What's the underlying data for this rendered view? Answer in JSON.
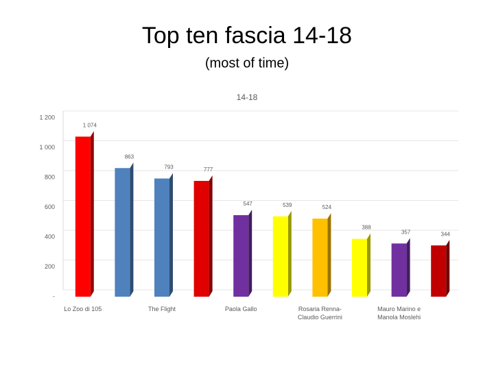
{
  "title": "Top ten fascia 14-18",
  "subtitle": "(most of time)",
  "chart_data": {
    "type": "bar",
    "title": "14-18",
    "categories": [
      "Lo Zoo di 105",
      null,
      "The Flight",
      null,
      "Paola Gallo",
      null,
      "Rosaria Renna-Claudio Guerrini",
      null,
      "Mauro Marino e Manola Moslehi",
      null
    ],
    "values": [
      1074,
      863,
      793,
      777,
      547,
      539,
      524,
      388,
      357,
      344
    ],
    "value_labels": [
      "1 074",
      "863",
      "793",
      "777",
      "547",
      "539",
      "524",
      "388",
      "357",
      "344"
    ],
    "colors": [
      "#ff0000",
      "#4f81bd",
      "#4f81bd",
      "#e00000",
      "#7030a0",
      "#ffff00",
      "#ffc000",
      "#ffff00",
      "#7030a0",
      "#c00000"
    ],
    "ylim": [
      0,
      1200
    ],
    "yticks": [
      {
        "value": 0,
        "label": "-"
      },
      200,
      400,
      600,
      800,
      {
        "value": 1000,
        "label": "1 000"
      },
      {
        "value": 1200,
        "label": "1 200"
      }
    ],
    "grid": true
  }
}
